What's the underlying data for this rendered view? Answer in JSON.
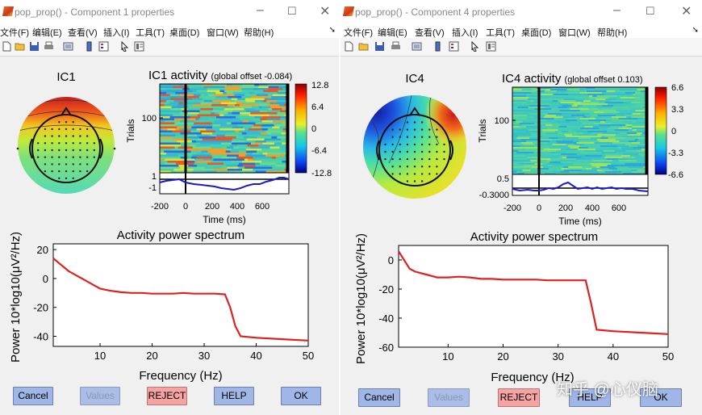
{
  "colors": {
    "spectrum_line": "#e02020",
    "erp_line": "#1a1acc"
  },
  "windows": [
    {
      "title": "pop_prop() - Component 1 properties",
      "menu": [
        "文件(F)",
        "编辑(E)",
        "查看(V)",
        "插入(I)",
        "工具(T)",
        "桌面(D)",
        "窗口(W)",
        "帮助(H)"
      ],
      "topo_label": "IC1",
      "activity_title": "IC1 activity",
      "activity_offset": "(global offset -0.084)",
      "trials_label": "Trials",
      "trials_tick": "100",
      "colorbar_ticks": [
        "12.8",
        "6.4",
        "0",
        "-6.4",
        "-12.8"
      ],
      "erp_ticks": [
        "1",
        "-1"
      ],
      "time_ticks": [
        "-200",
        "0",
        "200",
        "400",
        "600"
      ],
      "time_label": "Time (ms)",
      "spectrum_title": "Activity power spectrum",
      "spectrum_ylabel": "Power 10*log10(μV²/Hz)",
      "spectrum_xlabel": "Frequency (Hz)",
      "buttons": {
        "cancel": "Cancel",
        "values": "Values",
        "reject": "REJECT",
        "help": "HELP",
        "ok": "OK"
      }
    },
    {
      "title": "pop_prop() - Component 4 properties",
      "menu": [
        "文件(F)",
        "编辑(E)",
        "查看(V)",
        "插入(I)",
        "工具(T)",
        "桌面(D)",
        "窗口(W)",
        "帮助(H)"
      ],
      "topo_label": "IC4",
      "activity_title": "IC4 activity",
      "activity_offset": "(global offset 0.103)",
      "trials_label": "Trials",
      "trials_tick": "100",
      "colorbar_ticks": [
        "6.6",
        "3.3",
        "0",
        "-3.3",
        "-6.6"
      ],
      "erp_ticks": [
        "0.5",
        "-0.3000"
      ],
      "time_ticks": [
        "-200",
        "0",
        "200",
        "400",
        "600"
      ],
      "time_label": "Time (ms)",
      "spectrum_title": "Activity power spectrum",
      "spectrum_ylabel": "Power 10*log10(μV²/Hz)",
      "spectrum_xlabel": "Frequency (Hz)",
      "buttons": {
        "cancel": "Cancel",
        "values": "Values",
        "reject": "REJECT",
        "help": "HELP",
        "ok": "OK"
      }
    }
  ],
  "watermark": "知乎 @心仪脑",
  "chart_data": [
    {
      "type": "line",
      "title": "Activity power spectrum (IC1)",
      "xlabel": "Frequency (Hz)",
      "ylabel": "Power 10*log10(μV²/Hz)",
      "xlim": [
        1,
        50
      ],
      "ylim": [
        -47,
        24
      ],
      "xticks": [
        10,
        20,
        30,
        40,
        50
      ],
      "yticks": [
        20,
        0,
        -20,
        -40
      ],
      "x": [
        1,
        2,
        3,
        4,
        5,
        6,
        7,
        8,
        9,
        10,
        12,
        14,
        16,
        18,
        20,
        22,
        24,
        26,
        28,
        30,
        32,
        34,
        35,
        36,
        37,
        40,
        45,
        50
      ],
      "y": [
        14,
        11,
        8,
        5,
        3,
        1,
        -1,
        -3,
        -5,
        -7,
        -8.5,
        -9.5,
        -10,
        -10,
        -10.5,
        -10.5,
        -10.5,
        -10,
        -10.5,
        -10.5,
        -10.5,
        -11,
        -20,
        -33,
        -40,
        -41,
        -42,
        -43
      ]
    },
    {
      "type": "line",
      "title": "Activity power spectrum (IC4)",
      "xlabel": "Frequency (Hz)",
      "ylabel": "Power 10*log10(μV²/Hz)",
      "xlim": [
        1,
        50
      ],
      "ylim": [
        -60,
        10
      ],
      "xticks": [
        10,
        20,
        30,
        40,
        50
      ],
      "yticks": [
        0,
        -20,
        -40,
        -60
      ],
      "x": [
        1,
        2,
        3,
        4,
        5,
        6,
        7,
        8,
        10,
        12,
        14,
        16,
        18,
        20,
        22,
        24,
        26,
        28,
        30,
        32,
        34,
        35,
        36,
        37,
        40,
        45,
        50
      ],
      "y": [
        6,
        0,
        -6,
        -8,
        -9,
        -10,
        -11,
        -12,
        -12,
        -11.5,
        -12,
        -13,
        -13,
        -13.5,
        -13.5,
        -13.5,
        -13.5,
        -14,
        -14,
        -14,
        -14,
        -14,
        -30,
        -48,
        -49,
        -50,
        -51
      ]
    }
  ]
}
